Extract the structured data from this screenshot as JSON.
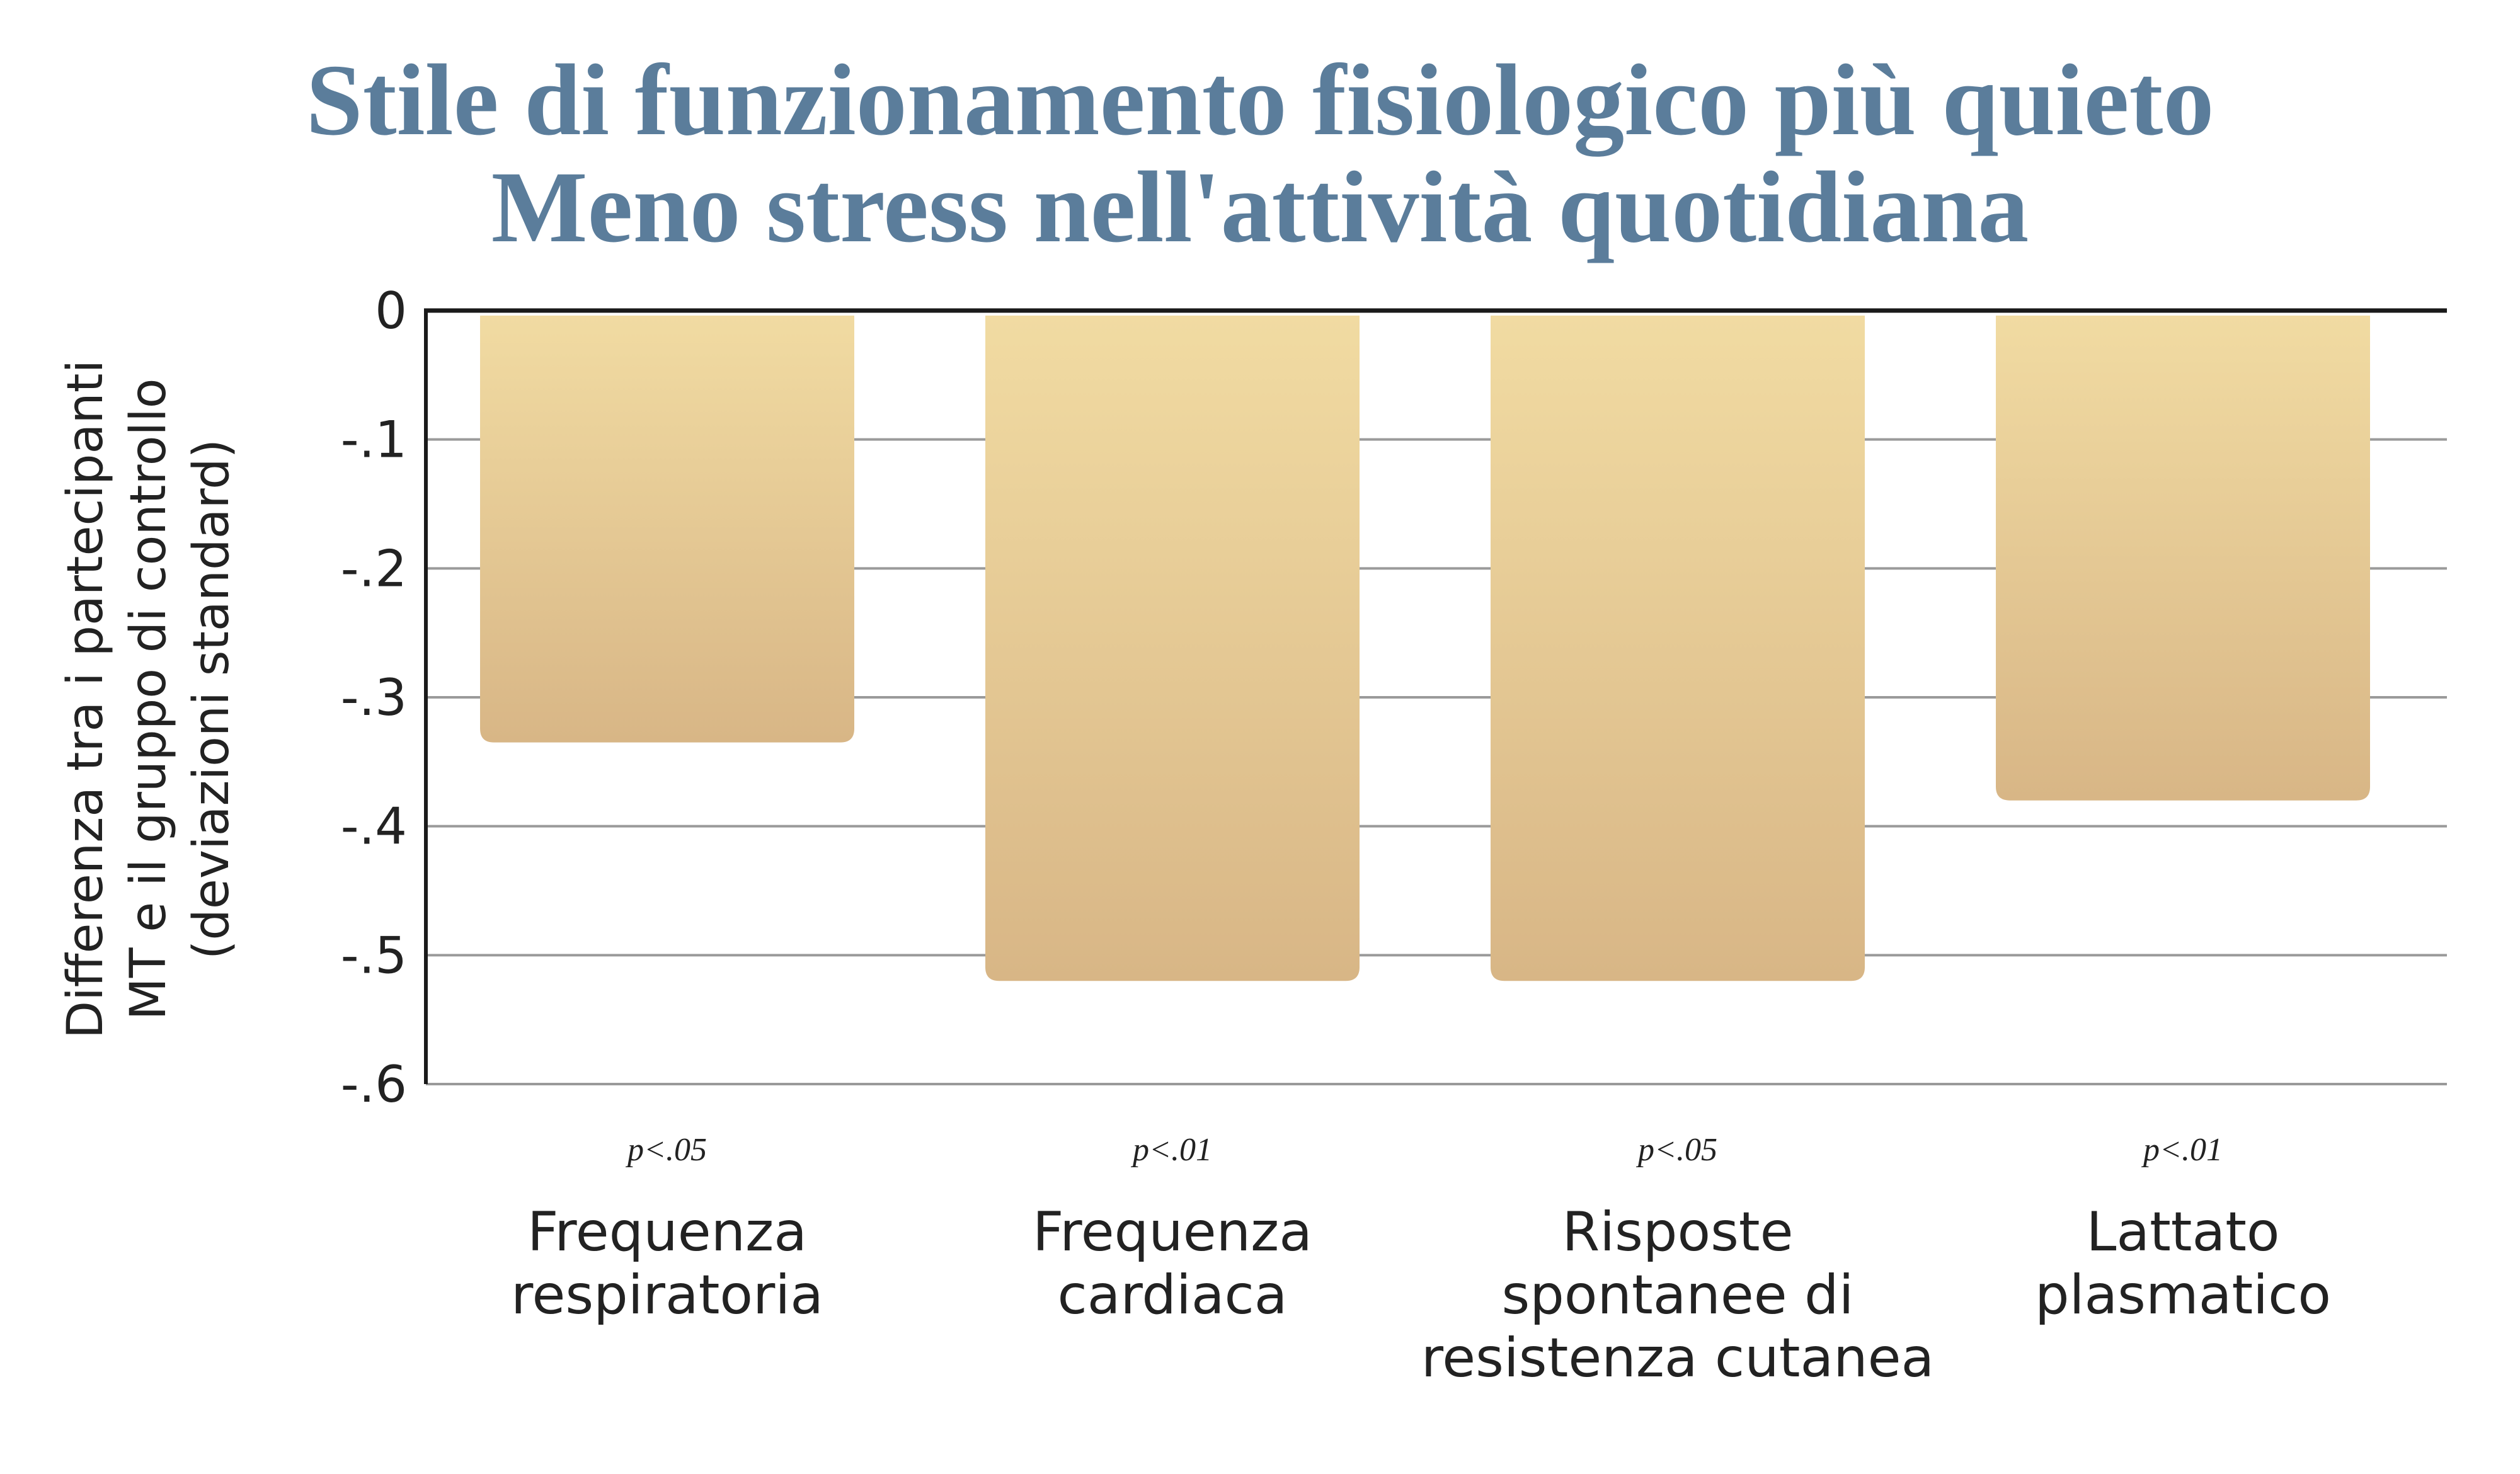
{
  "title_lines": [
    "Stile di funzionamento fisiologico più quieto",
    "Meno stress nell'attività quotidiana"
  ],
  "chart_data": {
    "type": "bar",
    "title": "Stile di funzionamento fisiologico più quieto / Meno stress nell'attività quotidiana",
    "ylabel_lines": [
      "Differenza tra i partecipanti",
      "MT e il gruppo di controllo",
      "(deviazioni standard)"
    ],
    "xlabel": "",
    "ylim": [
      -0.6,
      0
    ],
    "yticks": [
      0,
      -0.1,
      -0.2,
      -0.3,
      -0.4,
      -0.5,
      -0.6
    ],
    "ytick_labels": [
      "0",
      "-.1",
      "-.2",
      "-.3",
      "-.4",
      "-.5",
      "-.6"
    ],
    "grid": true,
    "categories": [
      [
        "Frequenza",
        "respiratoria"
      ],
      [
        "Frequenza",
        "cardiaca"
      ],
      [
        "Risposte",
        "spontanee di",
        "resistenza cutanea"
      ],
      [
        "Lattato",
        "plasmatico"
      ]
    ],
    "values": [
      -0.335,
      -0.52,
      -0.52,
      -0.38
    ],
    "annotations": [
      "p<.05",
      "p<.01",
      "p<.05",
      "p<.01"
    ],
    "colors": {
      "bar_top": "#f1dba2",
      "bar_bottom": "#d8b686",
      "grid": "#9a9a9a",
      "axis": "#1a1a1a",
      "title": "#5b7d9b"
    }
  }
}
